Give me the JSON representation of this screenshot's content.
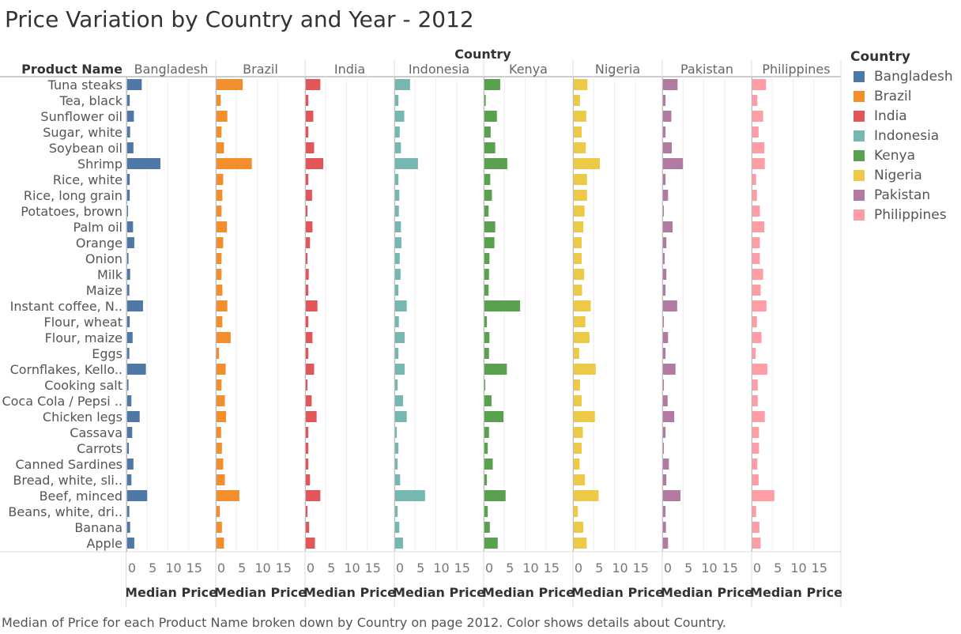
{
  "title": "Price Variation by Country and Year - 2012",
  "footer": "Median of Price for each Product Name broken down by Country on page 2012.  Color shows details about Country.",
  "legend": {
    "title": "Country",
    "items": [
      {
        "label": "Bangladesh",
        "color": "#4e79a7"
      },
      {
        "label": "Brazil",
        "color": "#f28e2b"
      },
      {
        "label": "India",
        "color": "#e15759"
      },
      {
        "label": "Indonesia",
        "color": "#76b7b2"
      },
      {
        "label": "Kenya",
        "color": "#59a14f"
      },
      {
        "label": "Nigeria",
        "color": "#edc948"
      },
      {
        "label": "Pakistan",
        "color": "#b07aa1"
      },
      {
        "label": "Philippines",
        "color": "#ff9da7"
      }
    ]
  },
  "chart_data": {
    "type": "bar",
    "orientation": "horizontal",
    "facet_header": "Country",
    "row_header": "Product Name",
    "xlabel": "Median Price",
    "xlim": [
      0,
      20
    ],
    "xticks": [
      0,
      5,
      10,
      15
    ],
    "categories": [
      "Tuna steaks",
      "Tea, black",
      "Sunflower oil",
      "Sugar, white",
      "Soybean oil",
      "Shrimp",
      "Rice, white",
      "Rice, long grain",
      "Potatoes, brown",
      "Palm oil",
      "Orange",
      "Onion",
      "Milk",
      "Maize",
      "Instant coffee, N..",
      "Flour, wheat",
      "Flour, maize",
      "Eggs",
      "Cornflakes, Kello..",
      "Cooking salt",
      "Coca Cola / Pepsi ..",
      "Chicken legs",
      "Cassava",
      "Carrots",
      "Canned Sardines",
      "Bread, white, sli..",
      "Beef, minced",
      "Beans, white, dri..",
      "Banana",
      "Apple"
    ],
    "series": [
      {
        "name": "Bangladesh",
        "values": [
          3.5,
          0.6,
          1.6,
          0.7,
          1.5,
          8.0,
          0.6,
          0.6,
          0.2,
          1.4,
          1.7,
          0.3,
          0.7,
          0.5,
          3.8,
          0.6,
          1.3,
          0.5,
          4.5,
          0.3,
          1.0,
          3.0,
          1.2,
          0.4,
          1.5,
          1.0,
          4.8,
          0.5,
          0.7,
          1.7
        ]
      },
      {
        "name": "Brazil",
        "values": [
          6.3,
          1.0,
          2.6,
          1.2,
          1.8,
          8.5,
          1.6,
          1.4,
          1.2,
          2.5,
          1.6,
          1.2,
          1.2,
          1.4,
          2.6,
          1.4,
          3.4,
          0.6,
          2.2,
          1.2,
          2.0,
          2.3,
          1.1,
          1.3,
          1.6,
          2.0,
          5.5,
          0.8,
          1.3,
          1.8
        ]
      },
      {
        "name": "India",
        "values": [
          3.5,
          0.6,
          1.8,
          0.6,
          2.0,
          4.2,
          0.6,
          1.5,
          0.4,
          1.6,
          1.0,
          0.4,
          0.7,
          0.6,
          2.8,
          0.6,
          1.6,
          0.6,
          2.0,
          0.4,
          1.4,
          2.6,
          0.6,
          0.6,
          0.6,
          1.0,
          3.5,
          0.4,
          0.8,
          2.2
        ]
      },
      {
        "name": "Indonesia",
        "values": [
          3.6,
          0.8,
          2.2,
          1.1,
          1.4,
          5.5,
          0.8,
          1.0,
          0.9,
          1.4,
          1.5,
          1.1,
          1.3,
          0.8,
          2.8,
          0.9,
          2.3,
          0.8,
          2.3,
          0.6,
          1.9,
          2.8,
          0.4,
          0.8,
          0.6,
          1.2,
          7.2,
          0.6,
          1.0,
          1.9
        ]
      },
      {
        "name": "Kenya",
        "values": [
          3.8,
          0.3,
          3.0,
          1.5,
          2.6,
          5.5,
          1.4,
          1.8,
          1.0,
          2.6,
          2.4,
          1.2,
          1.1,
          1.0,
          8.6,
          0.6,
          1.2,
          1.1,
          5.4,
          0.2,
          1.7,
          4.6,
          1.1,
          0.8,
          2.0,
          0.6,
          5.1,
          0.8,
          1.3,
          3.2
        ]
      },
      {
        "name": "Nigeria",
        "values": [
          3.3,
          1.5,
          3.0,
          1.9,
          2.9,
          6.3,
          3.2,
          3.2,
          2.6,
          2.3,
          1.9,
          1.9,
          2.5,
          2.0,
          4.1,
          2.8,
          3.8,
          1.3,
          5.3,
          1.5,
          1.9,
          5.1,
          2.2,
          1.9,
          1.4,
          2.7,
          6.0,
          1.0,
          2.3,
          3.1
        ]
      },
      {
        "name": "Pakistan",
        "values": [
          3.5,
          0.6,
          2.0,
          0.6,
          2.1,
          4.8,
          0.6,
          1.2,
          0.2,
          2.3,
          0.8,
          0.4,
          0.8,
          0.6,
          3.4,
          0.2,
          1.2,
          0.6,
          3.0,
          0.2,
          1.1,
          2.7,
          0.6,
          0.2,
          1.4,
          0.8,
          4.2,
          0.6,
          0.7,
          1.2
        ]
      },
      {
        "name": "Philippines",
        "values": [
          3.3,
          1.2,
          2.6,
          1.5,
          2.9,
          3.0,
          0.9,
          1.1,
          1.8,
          2.9,
          1.8,
          1.8,
          2.6,
          2.0,
          3.4,
          1.1,
          2.2,
          0.8,
          3.6,
          1.3,
          1.3,
          3.0,
          1.6,
          1.6,
          1.2,
          1.5,
          5.3,
          0.9,
          1.7,
          2.0
        ]
      }
    ]
  }
}
